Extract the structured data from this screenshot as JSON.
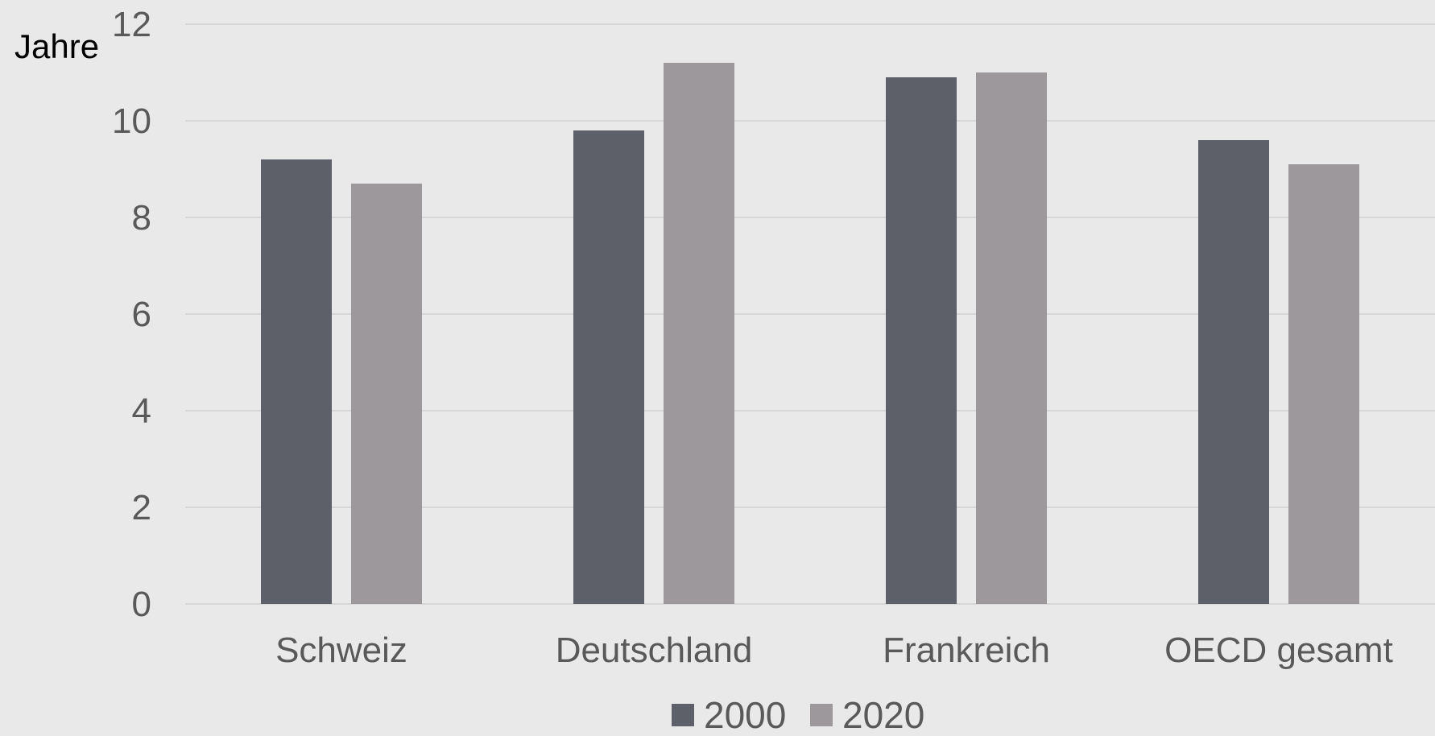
{
  "chart_data": {
    "type": "bar",
    "title": "",
    "xlabel": "",
    "ylabel": "Jahre",
    "ylim": [
      0,
      12
    ],
    "yticks": [
      "0",
      "2",
      "4",
      "6",
      "8",
      "10",
      "12"
    ],
    "categories": [
      "Schweiz",
      "Deutschland",
      "Frankreich",
      "OECD gesamt"
    ],
    "series": [
      {
        "name": "2000",
        "values": [
          9.2,
          9.8,
          10.9,
          9.6
        ],
        "color": "#5d6068"
      },
      {
        "name": "2020",
        "values": [
          8.7,
          11.2,
          11.0,
          9.1
        ],
        "color": "#9d989c"
      }
    ],
    "grid": true,
    "legend_position": "bottom"
  }
}
